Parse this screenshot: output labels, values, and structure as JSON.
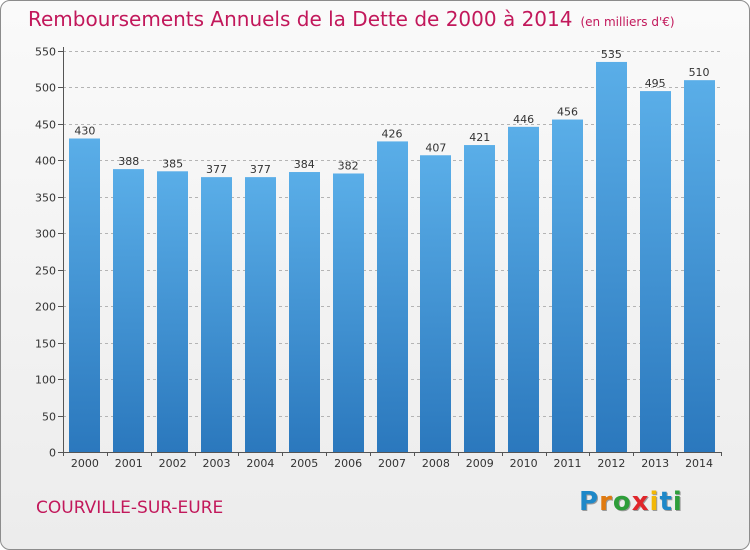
{
  "title": "Remboursements Annuels de la Dette de 2000 à 2014",
  "subtitle": "(en milliers d'€)",
  "commune": "COURVILLE-SUR-EURE",
  "logo": {
    "text": "Proxiti",
    "letter_colors": [
      "#1e88c8",
      "#e07a10",
      "#2e9e3a",
      "#e0262b",
      "#f2b705",
      "#1e88c8",
      "#2e9e3a"
    ]
  },
  "colors": {
    "title": "#c2185b",
    "bar_light": "#5aaee8",
    "bar_dark": "#2b78bd",
    "grid": "#b4b4b4",
    "axis": "#555555"
  },
  "chart_data": {
    "type": "bar",
    "title": "Remboursements Annuels de la Dette de 2000 à 2014",
    "subtitle": "(en milliers d'€)",
    "xlabel": "",
    "ylabel": "",
    "categories": [
      "2000",
      "2001",
      "2002",
      "2003",
      "2004",
      "2005",
      "2006",
      "2007",
      "2008",
      "2009",
      "2010",
      "2011",
      "2012",
      "2013",
      "2014"
    ],
    "values": [
      430,
      388,
      385,
      377,
      377,
      384,
      382,
      426,
      407,
      421,
      446,
      456,
      535,
      495,
      510
    ],
    "ylim": [
      0,
      550
    ],
    "yticks": [
      0,
      50,
      100,
      150,
      200,
      250,
      300,
      350,
      400,
      450,
      500,
      550
    ],
    "grid": true,
    "data_labels": true
  }
}
